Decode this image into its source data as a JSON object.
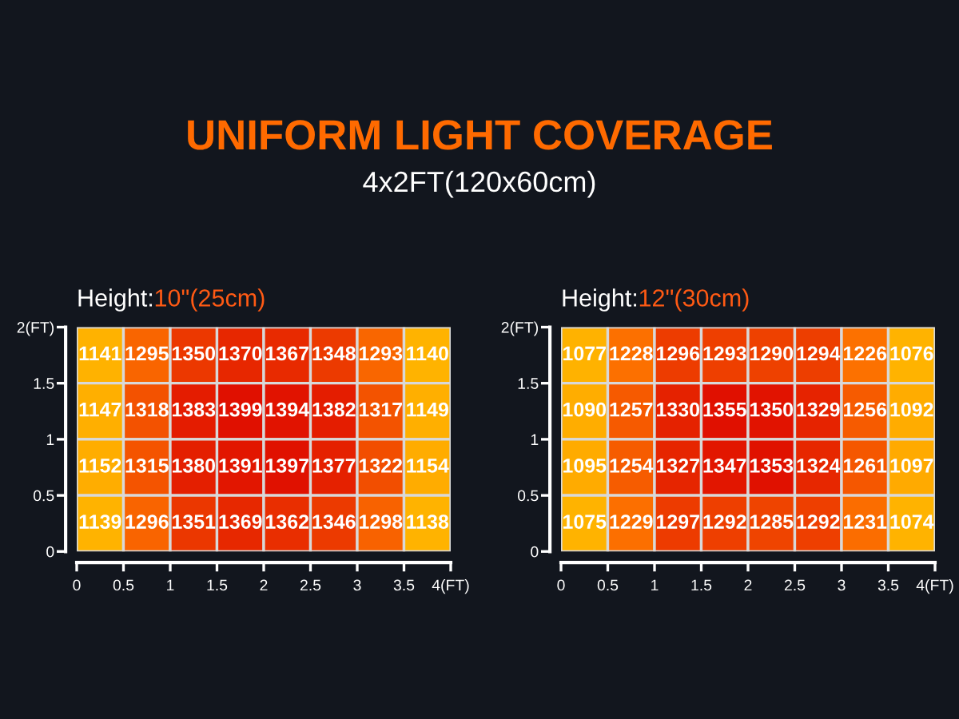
{
  "chart_data": [
    {
      "type": "heatmap",
      "title": "Height:10\"(25cm)",
      "annotations": [
        "UNIFORM LIGHT COVERAGE",
        "4x2FT(120x60cm)"
      ],
      "cells": [
        [
          1141,
          1295,
          1350,
          1370,
          1367,
          1348,
          1293,
          1140
        ],
        [
          1147,
          1318,
          1383,
          1399,
          1394,
          1382,
          1317,
          1149
        ],
        [
          1152,
          1315,
          1380,
          1391,
          1397,
          1377,
          1322,
          1154
        ],
        [
          1139,
          1296,
          1351,
          1369,
          1362,
          1346,
          1298,
          1138
        ]
      ],
      "xlim": [
        0,
        4
      ],
      "xticks": [
        0,
        0.5,
        1,
        1.5,
        2,
        2.5,
        3,
        3.5,
        {
          "value": 4,
          "label": "4(FT)"
        }
      ],
      "ylim": [
        0,
        2
      ],
      "yticks": [
        0,
        0.5,
        1,
        1.5,
        {
          "value": 2,
          "label": "2(FT)"
        }
      ],
      "data_labels": true
    },
    {
      "type": "heatmap",
      "title": "Height:12\"(30cm)",
      "cells": [
        [
          1077,
          1228,
          1296,
          1293,
          1290,
          1294,
          1226,
          1076
        ],
        [
          1090,
          1257,
          1330,
          1355,
          1350,
          1329,
          1256,
          1092
        ],
        [
          1095,
          1254,
          1327,
          1347,
          1353,
          1324,
          1261,
          1097
        ],
        [
          1075,
          1229,
          1297,
          1292,
          1285,
          1292,
          1231,
          1074
        ]
      ],
      "xlim": [
        0,
        4
      ],
      "xticks": [
        0,
        0.5,
        1,
        1.5,
        2,
        2.5,
        3,
        3.5,
        {
          "value": 4,
          "label": "4(FT)"
        }
      ],
      "ylim": [
        0,
        2
      ],
      "yticks": [
        0,
        0.5,
        1,
        1.5,
        {
          "value": 2,
          "label": "2(FT)"
        }
      ],
      "data_labels": true
    }
  ]
}
